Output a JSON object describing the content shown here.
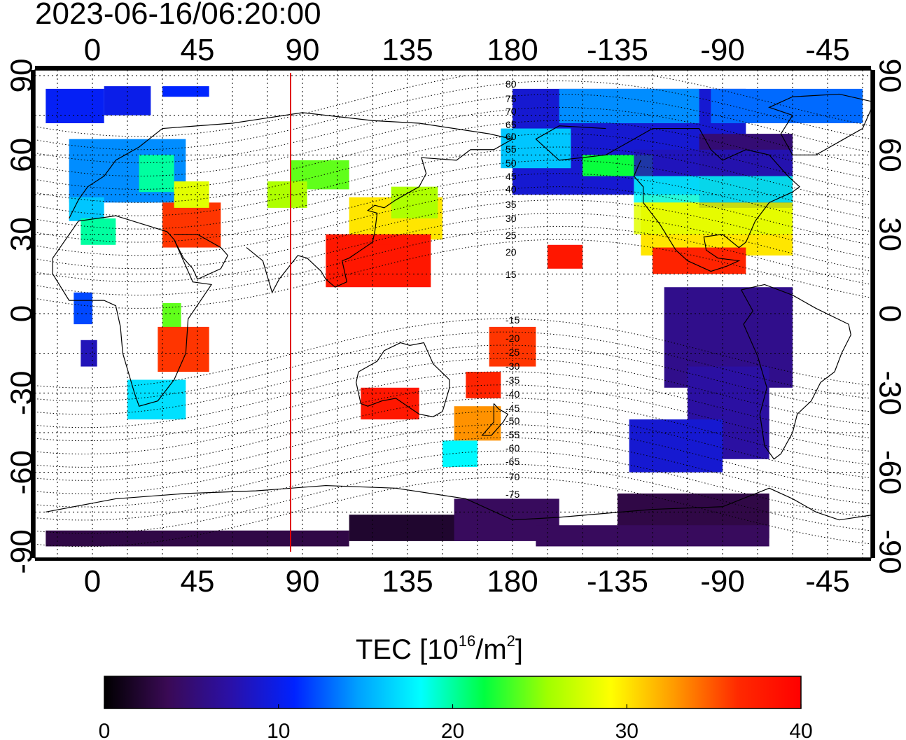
{
  "timestamp": "2023-06-16/06:20:00",
  "map": {
    "lon_ticks_top": [
      "0",
      "45",
      "90",
      "135",
      "180",
      "-135",
      "-90",
      "-45"
    ],
    "lon_ticks_bottom": [
      "0",
      "45",
      "90",
      "135",
      "180",
      "-135",
      "-90",
      "-45"
    ],
    "lat_ticks_left": [
      "90",
      "60",
      "30",
      "0",
      "-30",
      "-60",
      "-90"
    ],
    "lat_ticks_right": [
      "90",
      "60",
      "30",
      "0",
      "-30",
      "-60",
      "-90"
    ],
    "mlat_labels_north": [
      "80",
      "75",
      "70",
      "65",
      "60",
      "55",
      "50",
      "45",
      "40",
      "35",
      "30",
      "25",
      "20",
      "15"
    ],
    "mlat_labels_south": [
      "-15",
      "-20",
      "-25",
      "-30",
      "-35",
      "-40",
      "-45",
      "-50",
      "-55",
      "-60",
      "-65",
      "-70",
      "-75"
    ],
    "lon_range": [
      -25,
      335
    ],
    "lat_range": [
      -90,
      90
    ],
    "terminator_lon": 85,
    "terminator_color": "#e00000"
  },
  "colorbar": {
    "title_prefix": "TEC  [10",
    "title_exp": "16",
    "title_mid": "/m",
    "title_sup2": "2",
    "title_suffix": "]",
    "tick_labels": [
      "0",
      "10",
      "20",
      "30",
      "40"
    ],
    "range": [
      0,
      40
    ],
    "colors": [
      "#000000",
      "#3a0a55",
      "#2a10a8",
      "#0022ff",
      "#00a0ff",
      "#00ffff",
      "#00ff40",
      "#a0ff00",
      "#ffff00",
      "#ff9a00",
      "#ff2a00",
      "#ff0000"
    ]
  }
}
